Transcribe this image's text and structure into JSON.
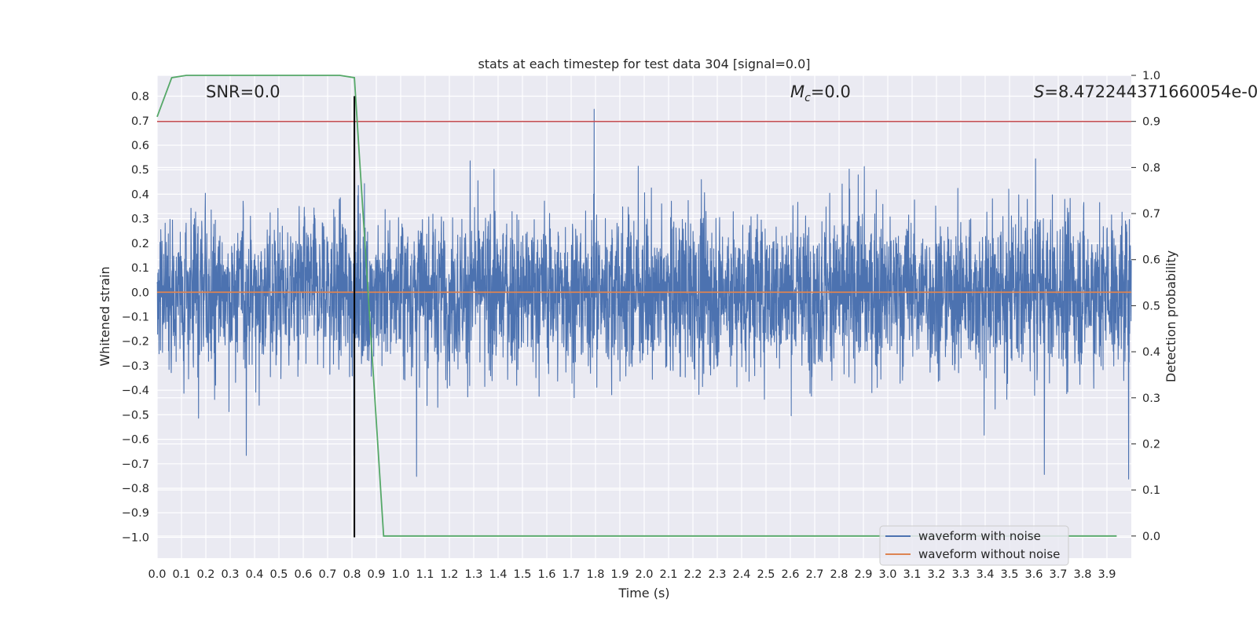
{
  "chart_data": {
    "type": "line",
    "title": "stats at each timestep for test data 304 [signal=0.0]",
    "xlabel": "Time (s)",
    "ylabel": "Whitened strain",
    "y2label": "Detection probability",
    "xlim": [
      0.0,
      4.0
    ],
    "ylim": [
      -1.085,
      0.885
    ],
    "y2lim": [
      -0.048,
      1.0
    ],
    "grid": true,
    "x_ticks": [
      "0.0",
      "0.1",
      "0.2",
      "0.3",
      "0.4",
      "0.5",
      "0.6",
      "0.7",
      "0.8",
      "0.9",
      "1.0",
      "1.1",
      "1.2",
      "1.3",
      "1.4",
      "1.5",
      "1.6",
      "1.7",
      "1.8",
      "1.9",
      "2.0",
      "2.1",
      "2.2",
      "2.3",
      "2.4",
      "2.5",
      "2.6",
      "2.7",
      "2.8",
      "2.9",
      "3.0",
      "3.1",
      "3.2",
      "3.3",
      "3.4",
      "3.5",
      "3.6",
      "3.7",
      "3.8",
      "3.9"
    ],
    "y_ticks": [
      "0.8",
      "0.7",
      "0.6",
      "0.5",
      "0.4",
      "0.3",
      "0.2",
      "0.1",
      "0.0",
      "−0.1",
      "−0.2",
      "−0.3",
      "−0.4",
      "−0.5",
      "−0.6",
      "−0.7",
      "−0.8",
      "−0.9",
      "−1.0"
    ],
    "y2_ticks": [
      "1.0",
      "0.9",
      "0.8",
      "0.7",
      "0.6",
      "0.5",
      "0.4",
      "0.3",
      "0.2",
      "0.1",
      "0.0"
    ],
    "annotations": {
      "snr": "SNR=0.0",
      "mc_symbol": "M",
      "mc_sub": "c",
      "mc_value": "=0.0",
      "s_symbol": "S",
      "s_value": "=8.472244371660054e-0"
    },
    "series": [
      {
        "name": "waveform with noise",
        "color": "#4c72b0",
        "axis": "left",
        "style": "noise",
        "amplitude_typical": 0.25,
        "amplitude_max": 0.8
      },
      {
        "name": "waveform without noise",
        "color": "#dd8452",
        "axis": "left",
        "x": [
          0.0,
          4.0
        ],
        "values": [
          0.0,
          0.0
        ]
      },
      {
        "name": "detection probability",
        "color": "#55a868",
        "axis": "right",
        "legend": false,
        "x": [
          0.0,
          0.06,
          0.12,
          0.2,
          0.4,
          0.6,
          0.75,
          0.81,
          0.93,
          1.0,
          2.0,
          3.0,
          3.94
        ],
        "values": [
          0.91,
          0.995,
          1.0,
          1.0,
          1.0,
          1.0,
          1.0,
          0.995,
          0.0,
          0.0,
          0.0,
          0.0,
          0.0
        ]
      },
      {
        "name": "threshold",
        "color": "#c44e52",
        "axis": "right",
        "legend": false,
        "x": [
          0.0,
          4.0
        ],
        "values": [
          0.9,
          0.9
        ]
      },
      {
        "name": "trigger time",
        "color": "#000000",
        "axis": "vertical",
        "legend": false,
        "x": 0.81,
        "y_range": [
          -1.0,
          0.8
        ]
      }
    ],
    "legend": {
      "position": "lower-right",
      "entries": [
        {
          "label": "waveform with noise",
          "color": "#4c72b0"
        },
        {
          "label": "waveform without noise",
          "color": "#dd8452"
        }
      ]
    },
    "colors": {
      "plot_bg": "#eaeaf2",
      "grid": "#ffffff",
      "text": "#262626"
    }
  }
}
